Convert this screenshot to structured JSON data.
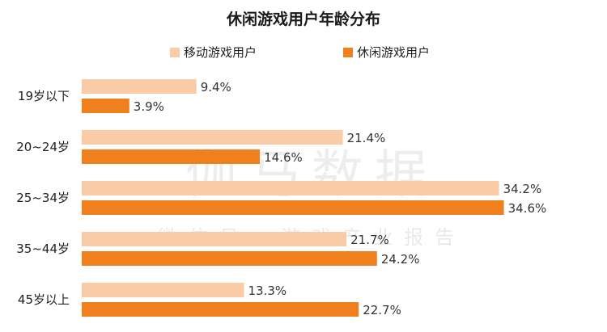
{
  "watermark": {
    "main": "伽马数据",
    "sub": "微信号：游戏产业报告"
  },
  "chart_data": {
    "type": "bar",
    "orientation": "horizontal",
    "title": "休闲游戏用户年龄分布",
    "xlabel": "",
    "ylabel": "",
    "xlim": [
      0,
      40
    ],
    "grid": false,
    "legend_position": "top",
    "value_format": "percent",
    "categories": [
      "19岁以下",
      "20~24岁",
      "25~34岁",
      "35~44岁",
      "45岁以上"
    ],
    "series": [
      {
        "name": "移动游戏用户",
        "color": "#F9CBA7",
        "values": [
          9.4,
          21.4,
          34.2,
          21.7,
          13.3
        ]
      },
      {
        "name": "休闲游戏用户",
        "color": "#F0801E",
        "values": [
          3.9,
          14.6,
          34.6,
          24.2,
          22.7
        ]
      }
    ]
  }
}
